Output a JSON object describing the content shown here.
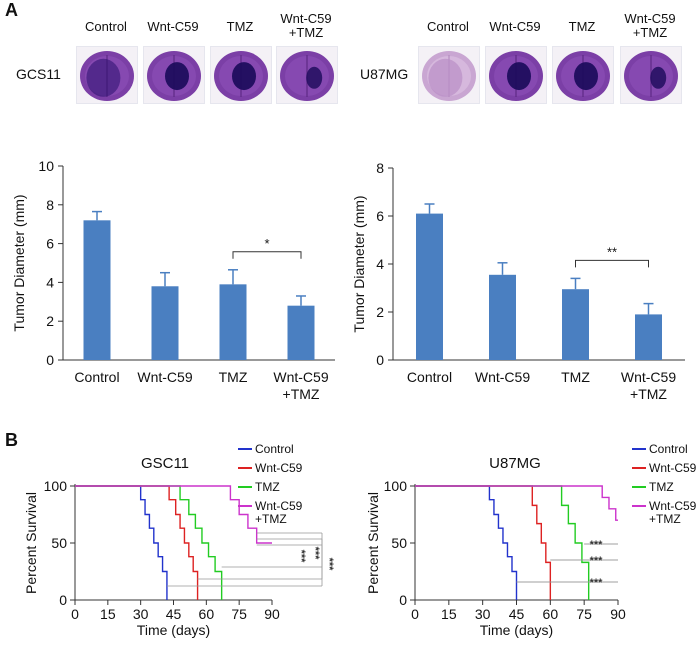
{
  "panel_a": {
    "label": "A",
    "groups": [
      {
        "cell_line": "GCS11",
        "conditions": [
          "Control",
          "Wnt-C59",
          "TMZ",
          "Wnt-C59\n+TMZ"
        ],
        "tumor_sizes": [
          "large",
          "medium",
          "medium",
          "small"
        ]
      },
      {
        "cell_line": "U87MG",
        "conditions": [
          "Control",
          "Wnt-C59",
          "TMZ",
          "Wnt-C59\n+TMZ"
        ],
        "tumor_sizes": [
          "large",
          "medium",
          "medium",
          "small"
        ]
      }
    ]
  },
  "panel_b": {
    "label": "B"
  },
  "chart_data": [
    {
      "type": "bar",
      "title": "",
      "ylabel": "Tumor Diameter (mm)",
      "xlabel": "",
      "categories": [
        "Control",
        "Wnt-C59",
        "TMZ",
        "Wnt-C59\n+TMZ"
      ],
      "values": [
        7.2,
        3.8,
        3.9,
        2.8
      ],
      "errors": [
        0.45,
        0.7,
        0.75,
        0.5
      ],
      "ylim": [
        0,
        10
      ],
      "yticks": [
        "0",
        "2",
        "4",
        "6",
        "8",
        "10"
      ],
      "color": "#4a7fc1",
      "significance": [
        {
          "from": 2,
          "to": 3,
          "label": "*"
        }
      ]
    },
    {
      "type": "bar",
      "title": "",
      "ylabel": "Tumor Diameter (mm)",
      "xlabel": "",
      "categories": [
        "Control",
        "Wnt-C59",
        "TMZ",
        "Wnt-C59\n+TMZ"
      ],
      "values": [
        6.1,
        3.55,
        2.95,
        1.9
      ],
      "errors": [
        0.4,
        0.5,
        0.45,
        0.45
      ],
      "ylim": [
        0,
        8
      ],
      "yticks": [
        "0",
        "2",
        "4",
        "6",
        "8"
      ],
      "color": "#4a7fc1",
      "significance": [
        {
          "from": 2,
          "to": 3,
          "label": "**"
        }
      ]
    },
    {
      "type": "line",
      "subtype": "kaplan-meier",
      "title": "GSC11",
      "xlabel": "Time (days)",
      "ylabel": "Percent Survival",
      "xlim": [
        0,
        90
      ],
      "ylim": [
        0,
        100
      ],
      "xticks": [
        "0",
        "15",
        "30",
        "45",
        "60",
        "75",
        "90"
      ],
      "yticks": [
        "0",
        "50",
        "100"
      ],
      "series": [
        {
          "name": "Control",
          "color": "#2233cc",
          "x": [
            0,
            28,
            30,
            32,
            34,
            36,
            38,
            40,
            42
          ],
          "y": [
            100,
            100,
            88,
            75,
            63,
            50,
            38,
            25,
            0
          ]
        },
        {
          "name": "Wnt-C59",
          "color": "#dd2222",
          "x": [
            0,
            40,
            43,
            46,
            48,
            50,
            52,
            54,
            56
          ],
          "y": [
            100,
            100,
            88,
            75,
            63,
            50,
            38,
            25,
            0
          ]
        },
        {
          "name": "TMZ",
          "color": "#22cc22",
          "x": [
            0,
            44,
            48,
            52,
            55,
            58,
            61,
            64,
            67
          ],
          "y": [
            100,
            100,
            88,
            75,
            63,
            50,
            38,
            25,
            0
          ]
        },
        {
          "name": "Wnt-C59\n+TMZ",
          "color": "#cc33cc",
          "x": [
            0,
            68,
            71,
            75,
            79,
            83,
            90
          ],
          "y": [
            100,
            100,
            88,
            75,
            63,
            50,
            50
          ]
        }
      ],
      "significance": [
        "***",
        "***",
        "***"
      ]
    },
    {
      "type": "line",
      "subtype": "kaplan-meier",
      "title": "U87MG",
      "xlabel": "Time (days)",
      "ylabel": "Percent Survival",
      "xlim": [
        0,
        90
      ],
      "ylim": [
        0,
        100
      ],
      "xticks": [
        "0",
        "15",
        "30",
        "45",
        "60",
        "75",
        "90"
      ],
      "yticks": [
        "0",
        "50",
        "100"
      ],
      "series": [
        {
          "name": "Control",
          "color": "#2233cc",
          "x": [
            0,
            30,
            33,
            35,
            37,
            39,
            41,
            43,
            45
          ],
          "y": [
            100,
            100,
            88,
            75,
            63,
            50,
            38,
            25,
            0
          ]
        },
        {
          "name": "Wnt-C59",
          "color": "#dd2222",
          "x": [
            0,
            50,
            52,
            54,
            56,
            58,
            60
          ],
          "y": [
            100,
            100,
            83,
            67,
            50,
            33,
            0
          ]
        },
        {
          "name": "TMZ",
          "color": "#22cc22",
          "x": [
            0,
            62,
            65,
            68,
            71,
            74,
            77
          ],
          "y": [
            100,
            100,
            83,
            67,
            50,
            33,
            0
          ]
        },
        {
          "name": "Wnt-C59\n+TMZ",
          "color": "#cc33cc",
          "x": [
            0,
            80,
            83,
            86,
            89,
            90
          ],
          "y": [
            100,
            100,
            90,
            80,
            70,
            70
          ]
        }
      ],
      "significance": [
        "***",
        "***",
        "***"
      ]
    }
  ]
}
